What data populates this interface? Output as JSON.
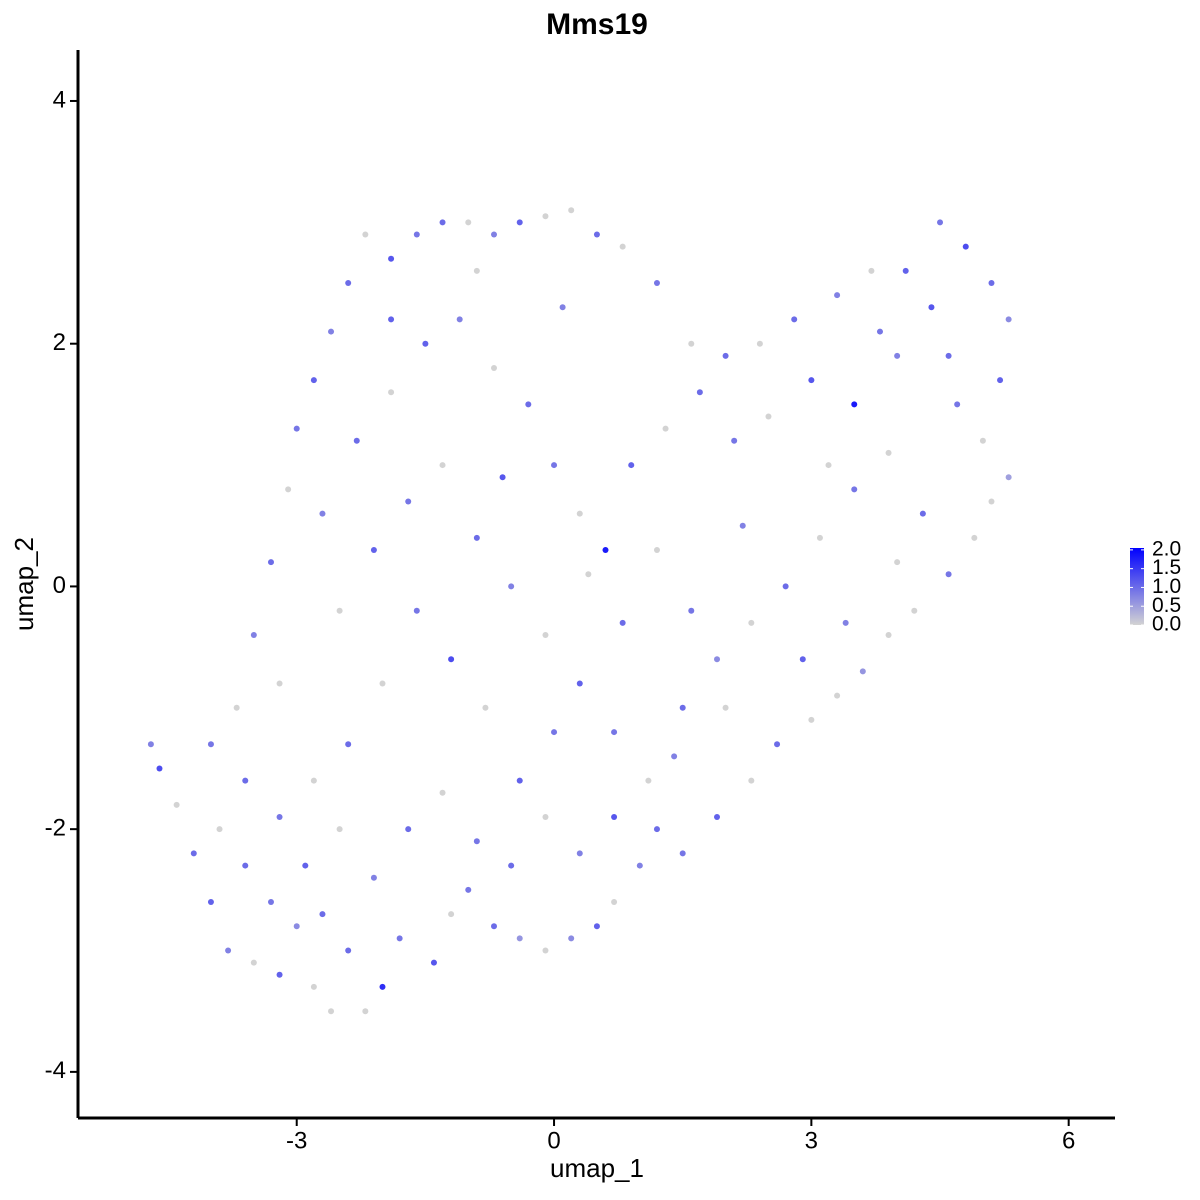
{
  "chart_data": {
    "type": "scatter",
    "title": "Mms19",
    "x_label": "umap_1",
    "y_label": "umap_2",
    "xlim": [
      -5.55,
      6.54
    ],
    "ylim": [
      -4.38,
      4.42
    ],
    "xticks": [
      -3,
      0,
      3,
      6
    ],
    "yticks": [
      -4,
      -2,
      0,
      2,
      4
    ],
    "grid": false,
    "low_color": "#d3d3d3",
    "high_color": "#0000ff",
    "colorbar_lim": [
      0,
      2.05
    ],
    "colorbar_ticks": [
      {
        "value": 0,
        "label": "0.0"
      },
      {
        "value": 0.5,
        "label": "0.5"
      },
      {
        "value": 1,
        "label": "1.0"
      },
      {
        "value": 1.5,
        "label": "1.5"
      },
      {
        "value": 2,
        "label": "2.0"
      }
    ],
    "x": [
      -4.7,
      -4.6,
      -4.4,
      -4.2,
      -4.0,
      -3.8,
      -3.6,
      -3.5,
      -3.3,
      -3.2,
      -3.0,
      -2.8,
      -2.6,
      -2.4,
      -2.2,
      -2.0,
      -1.8,
      -1.4,
      -1.2,
      -1.0,
      -0.7,
      -0.4,
      -0.1,
      0.2,
      0.5,
      0.7,
      1.0,
      1.2,
      1.5,
      1.9,
      2.3,
      2.6,
      3.0,
      3.3,
      3.6,
      3.9,
      4.2,
      4.6,
      4.9,
      5.1,
      5.3,
      -4.0,
      -3.7,
      -3.5,
      -3.3,
      -3.2,
      -3.1,
      -3.0,
      -2.8,
      -2.6,
      -2.4,
      -2.2,
      -1.9,
      -1.6,
      -1.3,
      -1.0,
      -0.7,
      -0.4,
      -0.1,
      0.2,
      0.5,
      0.8,
      1.2,
      1.6,
      2.0,
      2.4,
      2.8,
      3.3,
      3.7,
      4.1,
      4.5,
      4.8,
      5.1,
      5.3,
      5.2,
      5.0,
      4.7,
      4.4,
      4.0,
      3.5,
      3.0,
      2.5,
      2.1,
      1.7,
      1.3,
      0.9,
      0.6,
      0.3,
      0.0,
      -0.3,
      -0.7,
      -1.1,
      -1.5,
      -1.9,
      -2.3,
      -2.7,
      -2.5,
      -2.1,
      -1.7,
      -1.3,
      -0.9,
      -0.5,
      -0.1,
      0.3,
      0.7,
      1.1,
      1.5,
      1.9,
      2.3,
      2.7,
      3.1,
      3.5,
      3.9,
      4.3,
      4.0,
      3.4,
      2.9,
      2.0,
      1.6,
      1.2,
      0.8,
      0.4,
      0.0,
      -0.4,
      -0.8,
      -1.2,
      -1.6,
      -2.0,
      -2.4,
      -2.8,
      -3.2,
      -2.9,
      -2.5,
      -2.1,
      -1.7,
      -1.3,
      -0.9,
      -0.5,
      -0.1,
      0.3,
      0.7,
      1.4,
      -3.9,
      -3.6,
      -0.6,
      -1.9,
      2.2,
      3.2,
      4.6,
      3.8,
      0.1,
      -0.9,
      -2.7
    ],
    "y": [
      -1.3,
      -1.5,
      -1.8,
      -2.2,
      -2.6,
      -3.0,
      -2.3,
      -3.1,
      -2.6,
      -3.2,
      -2.8,
      -3.3,
      -3.5,
      -3.0,
      -3.5,
      -3.3,
      -2.9,
      -3.1,
      -2.7,
      -2.5,
      -2.8,
      -2.9,
      -3.0,
      -2.9,
      -2.8,
      -2.6,
      -2.3,
      -2.0,
      -2.2,
      -1.9,
      -1.6,
      -1.3,
      -1.1,
      -0.9,
      -0.7,
      -0.4,
      -0.2,
      0.1,
      0.4,
      0.7,
      0.9,
      -1.3,
      -1.0,
      -0.4,
      0.2,
      -0.8,
      0.8,
      1.3,
      1.7,
      2.1,
      2.5,
      2.9,
      2.7,
      2.9,
      3.0,
      3.0,
      2.9,
      3.0,
      3.05,
      3.1,
      2.9,
      2.8,
      2.5,
      2.0,
      1.9,
      2.0,
      2.2,
      2.4,
      2.6,
      2.6,
      3.0,
      2.8,
      2.5,
      2.2,
      1.7,
      1.2,
      1.5,
      2.3,
      1.9,
      1.5,
      1.7,
      1.4,
      1.2,
      1.6,
      1.3,
      1.0,
      0.3,
      0.6,
      1.0,
      1.5,
      1.8,
      2.2,
      2.0,
      1.6,
      1.2,
      0.6,
      -0.2,
      0.3,
      0.7,
      1.0,
      0.4,
      0.0,
      -0.4,
      -0.8,
      -1.2,
      -1.6,
      -1.0,
      -0.6,
      -0.3,
      0.0,
      0.4,
      0.8,
      1.1,
      0.6,
      0.2,
      -0.3,
      -0.6,
      -1.0,
      -0.2,
      0.3,
      -0.3,
      0.1,
      -1.2,
      -1.6,
      -1.0,
      -0.6,
      -0.2,
      -0.8,
      -1.3,
      -1.6,
      -1.9,
      -2.3,
      -2.0,
      -2.4,
      -2.0,
      -1.7,
      -2.1,
      -2.3,
      -1.9,
      -2.2,
      -1.9,
      -1.4,
      -2.0,
      -1.6,
      0.9,
      2.2,
      0.5,
      1.0,
      1.9,
      2.1,
      2.3,
      2.6,
      -2.7
    ],
    "values": [
      0.8,
      1.3,
      0,
      1.0,
      1.1,
      0.8,
      1.0,
      0,
      0.9,
      1.1,
      0.7,
      0,
      0,
      1.0,
      0,
      1.6,
      0.9,
      1.2,
      0,
      0.9,
      1.0,
      0.6,
      0,
      0.7,
      1.1,
      0,
      0.8,
      1.0,
      0.9,
      1.1,
      0,
      1.0,
      0,
      0,
      0.6,
      0,
      0,
      0.9,
      0,
      0,
      0.5,
      0.9,
      0,
      0.8,
      1.0,
      0,
      0,
      0.9,
      1.1,
      0.8,
      1.0,
      0,
      1.2,
      0.9,
      1.0,
      0,
      0.8,
      1.1,
      0,
      0,
      1.0,
      0,
      0.9,
      0,
      1.0,
      0,
      1.0,
      0.8,
      0,
      1.1,
      0.9,
      1.3,
      1.0,
      0.7,
      1.1,
      0,
      0.9,
      1.2,
      0.8,
      1.8,
      1.2,
      0,
      0.9,
      1.0,
      0,
      1.1,
      1.8,
      0,
      0.9,
      1.0,
      0,
      0.8,
      1.1,
      0,
      1.0,
      0.8,
      0,
      1.1,
      0.9,
      0,
      1.0,
      0.8,
      0,
      1.1,
      0.9,
      0,
      1.0,
      0.7,
      0,
      1.0,
      0,
      0.9,
      0,
      1.0,
      0,
      0.8,
      1.1,
      0,
      0.9,
      0,
      1.0,
      0,
      0.9,
      1.1,
      0,
      1.3,
      0.9,
      0,
      1.0,
      0,
      0.9,
      1.1,
      0,
      0.8,
      1.0,
      0,
      0.9,
      1.0,
      0,
      0.8,
      1.2,
      0.8,
      0,
      1.0,
      1.2,
      1.1,
      0.8,
      0,
      1.0,
      0.9,
      0.8,
      0,
      1.0
    ]
  }
}
